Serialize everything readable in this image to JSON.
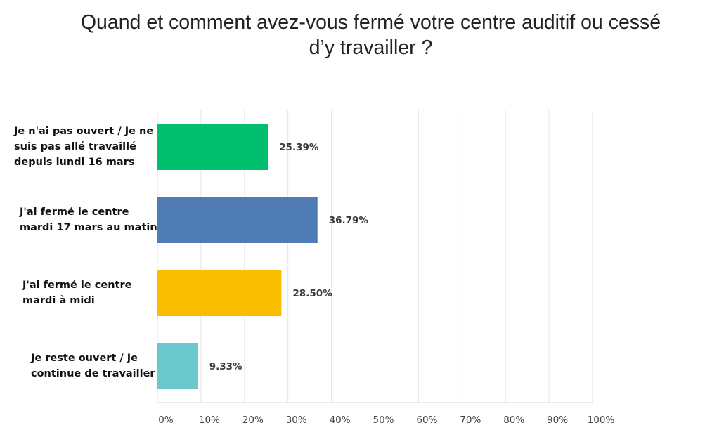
{
  "chart_data": {
    "type": "bar",
    "orientation": "horizontal",
    "title": "Quand et comment avez-vous fermé votre centre auditif ou cessé\nd’y travailler ?",
    "categories": [
      "Je n'ai pas ouvert / Je ne\nsuis pas allé travaillé\ndepuis lundi 16 mars",
      "J'ai fermé le  centre\nmardi 17 mars au matin",
      "J'ai fermé le centre\nmardi à midi",
      "Je reste ouvert / Je\ncontinue de travailler"
    ],
    "values": [
      25.39,
      36.79,
      28.5,
      9.33
    ],
    "value_labels": [
      "25.39%",
      "36.79%",
      "28.50%",
      "9.33%"
    ],
    "colors": [
      "#00bf6f",
      "#507cb6",
      "#f9be00",
      "#6bc8cd"
    ],
    "xlim": [
      0,
      100
    ],
    "x_ticks": [
      0,
      10,
      20,
      30,
      40,
      50,
      60,
      70,
      80,
      90,
      100
    ],
    "x_tick_labels": [
      "0%",
      "10%",
      "20%",
      "30%",
      "40%",
      "50%",
      "60%",
      "70%",
      "80%",
      "90%",
      "100%"
    ],
    "grid": true,
    "legend": "none"
  }
}
